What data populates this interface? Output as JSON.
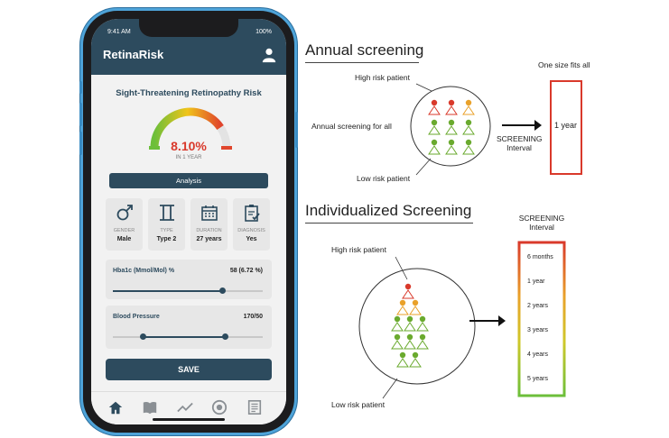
{
  "app": {
    "status_time": "9:41 AM",
    "battery": "100%",
    "brand": "RetinaRisk",
    "risk_title": "Sight-Threatening Retinopathy Risk",
    "risk_value": "8.10%",
    "risk_period": "IN 1 YEAR",
    "risk_level": 0.81,
    "analysis_label": "Analysis",
    "cards": [
      {
        "icon": "gender-male-icon",
        "label": "GENDER",
        "value": "Male"
      },
      {
        "icon": "type-gemini-icon",
        "label": "TYPE",
        "value": "Type 2"
      },
      {
        "icon": "calendar-icon",
        "label": "DURATION",
        "value": "27 years"
      },
      {
        "icon": "clipboard-check-icon",
        "label": "DIAGNOSIS",
        "value": "Yes"
      }
    ],
    "hba1c": {
      "label": "Hba1c (Mmol/Mol) %",
      "value": "58 (6.72 %)",
      "level": 0.73
    },
    "bp": {
      "label": "Blood Pressure",
      "value": "170/50",
      "low": 0.2,
      "high": 0.75
    },
    "save_label": "SAVE",
    "tabs": [
      "home-icon",
      "book-icon",
      "trend-icon",
      "target-icon",
      "news-icon"
    ],
    "colors": {
      "primary": "#2d4b5e",
      "risk_red": "#d9392b"
    }
  },
  "annual": {
    "title": "Annual screening",
    "high_risk": "High risk patient",
    "low_risk": "Low risk patient",
    "side_label": "Annual screening for all",
    "screening_line1": "SCREENING",
    "screening_line2": "Interval",
    "one_size": "One size fits all",
    "interval": "1 year"
  },
  "individual": {
    "title": "Individualized Screening",
    "high_risk": "High risk patient",
    "low_risk": "Low risk patient",
    "screening_line1": "SCREENING",
    "screening_line2": "Interval",
    "intervals": [
      "6 months",
      "1 year",
      "2 years",
      "3 years",
      "4 years",
      "5 years"
    ]
  }
}
